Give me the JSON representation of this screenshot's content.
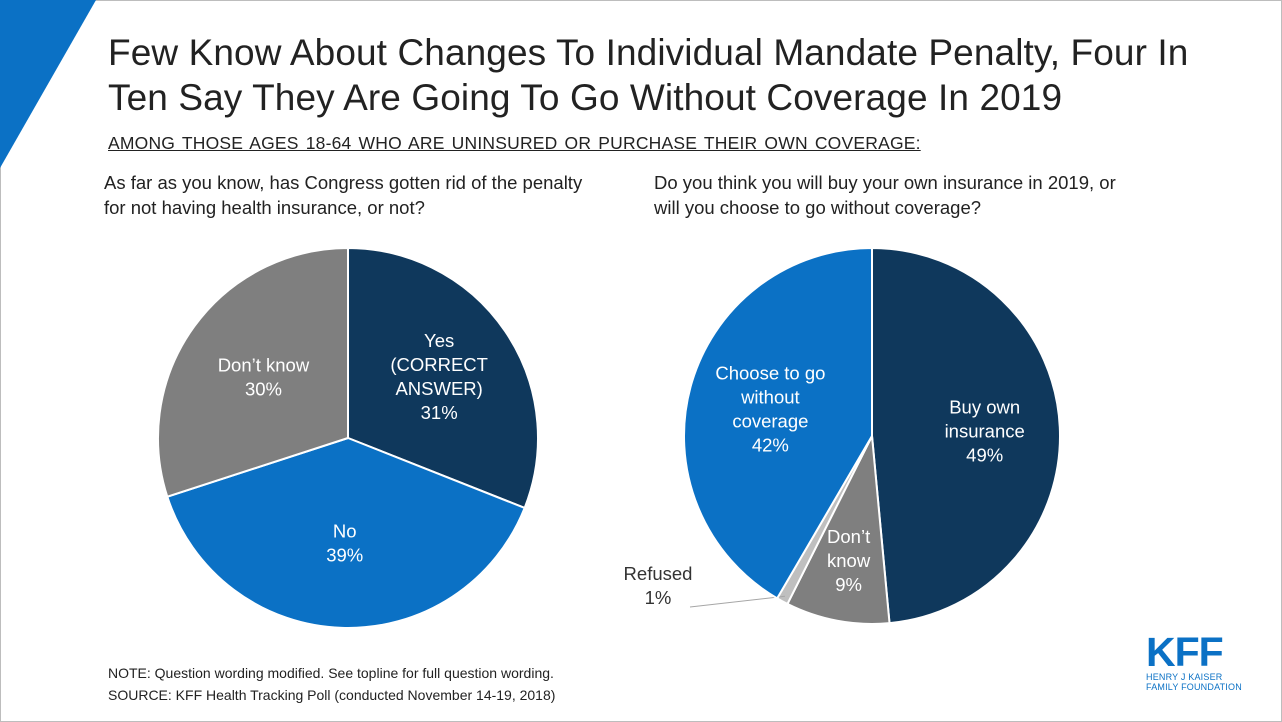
{
  "title": "Few Know About Changes To Individual Mandate Penalty, Four In Ten Say They Are Going To Go Without Coverage In 2019",
  "subtitle": "AMONG THOSE AGES 18-64 WHO ARE UNINSURED OR PURCHASE THEIR OWN COVERAGE:",
  "colors": {
    "navy": "#0f385c",
    "blue": "#0b71c5",
    "gray": "#7f7f7f",
    "light_gray": "#bfbfbf",
    "accent": "#0b71c5"
  },
  "chart_data": [
    {
      "type": "pie",
      "title": "As far as you know, has Congress gotten rid of the penalty for not having health insurance, or not?",
      "slices": [
        {
          "label": [
            "Yes",
            "(CORRECT",
            "ANSWER)"
          ],
          "value": 31,
          "value_label": "31%",
          "color": "#0f385c"
        },
        {
          "label": [
            "No"
          ],
          "value": 39,
          "value_label": "39%",
          "color": "#0b71c5"
        },
        {
          "label": [
            "Don’t know"
          ],
          "value": 30,
          "value_label": "30%",
          "color": "#7f7f7f"
        }
      ]
    },
    {
      "type": "pie",
      "title": "Do you think you will buy your own insurance in 2019, or will you choose to go without coverage?",
      "slices": [
        {
          "label": [
            "Buy own",
            "insurance"
          ],
          "value": 49,
          "value_label": "49%",
          "color": "#0f385c"
        },
        {
          "label": [
            "Don’t",
            "know"
          ],
          "value": 9,
          "value_label": "9%",
          "color": "#7f7f7f"
        },
        {
          "label": [
            "Refused"
          ],
          "value": 1,
          "value_label": "1%",
          "color": "#bfbfbf",
          "external": true
        },
        {
          "label": [
            "Choose to go",
            "without",
            "coverage"
          ],
          "value": 42,
          "value_label": "42%",
          "color": "#0b71c5"
        }
      ]
    }
  ],
  "notes": {
    "note": "NOTE: Question wording modified. See topline for full question wording.",
    "source": "SOURCE: KFF Health Tracking Poll (conducted November 14-19, 2018)"
  },
  "logo": {
    "mark": "KFF",
    "line1": "HENRY J KAISER",
    "line2": "FAMILY FOUNDATION"
  }
}
